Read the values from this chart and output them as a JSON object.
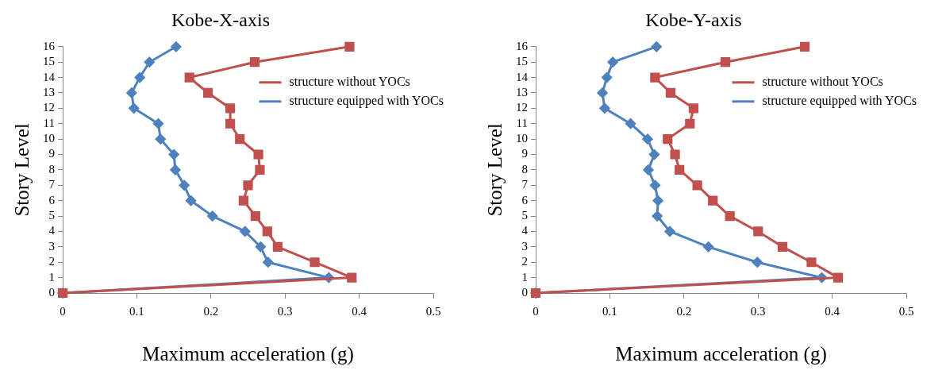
{
  "chart_data": [
    {
      "type": "line",
      "title": "Kobe-X-axis",
      "xlabel": "Maximum acceleration (g)",
      "ylabel": "Story Level",
      "xlim": [
        0,
        0.5
      ],
      "xticks": [
        0,
        0.1,
        0.2,
        0.3,
        0.4,
        0.5
      ],
      "ylim": [
        0,
        16
      ],
      "yticks": [
        0,
        1,
        2,
        3,
        4,
        5,
        6,
        7,
        8,
        9,
        10,
        11,
        12,
        13,
        14,
        15,
        16
      ],
      "grid": false,
      "legend": "top right",
      "series": [
        {
          "name": "structure without YOCs",
          "color": "#c0504d",
          "marker": "square",
          "x": [
            0,
            0.39,
            0.34,
            0.29,
            0.276,
            0.26,
            0.244,
            0.25,
            0.266,
            0.264,
            0.239,
            0.226,
            0.226,
            0.196,
            0.171,
            0.259,
            0.387
          ],
          "values": [
            0,
            1,
            2,
            3,
            4,
            5,
            6,
            7,
            8,
            9,
            10,
            11,
            12,
            13,
            14,
            15,
            16
          ]
        },
        {
          "name": "structure equipped with YOCs",
          "color": "#4f81bd",
          "marker": "diamond",
          "x": [
            0,
            0.359,
            0.277,
            0.267,
            0.246,
            0.202,
            0.173,
            0.164,
            0.152,
            0.15,
            0.132,
            0.129,
            0.096,
            0.093,
            0.104,
            0.117,
            0.153
          ],
          "values": [
            0,
            1,
            2,
            3,
            4,
            5,
            6,
            7,
            8,
            9,
            10,
            11,
            12,
            13,
            14,
            15,
            16
          ]
        }
      ]
    },
    {
      "type": "line",
      "title": "Kobe-Y-axis",
      "xlabel": "Maximum acceleration (g)",
      "ylabel": "Story Level",
      "xlim": [
        0,
        0.5
      ],
      "xticks": [
        0,
        0.1,
        0.2,
        0.3,
        0.4,
        0.5
      ],
      "ylim": [
        0,
        16
      ],
      "yticks": [
        0,
        1,
        2,
        3,
        4,
        5,
        6,
        7,
        8,
        9,
        10,
        11,
        12,
        13,
        14,
        15,
        16
      ],
      "grid": false,
      "legend": "top right",
      "series": [
        {
          "name": "structure without YOCs",
          "color": "#c0504d",
          "marker": "square",
          "x": [
            0,
            0.408,
            0.372,
            0.333,
            0.3,
            0.262,
            0.239,
            0.218,
            0.194,
            0.188,
            0.178,
            0.208,
            0.213,
            0.182,
            0.161,
            0.256,
            0.363
          ],
          "values": [
            0,
            1,
            2,
            3,
            4,
            5,
            6,
            7,
            8,
            9,
            10,
            11,
            12,
            13,
            14,
            15,
            16
          ]
        },
        {
          "name": "structure equipped with YOCs",
          "color": "#4f81bd",
          "marker": "diamond",
          "x": [
            0,
            0.386,
            0.299,
            0.233,
            0.181,
            0.164,
            0.165,
            0.161,
            0.152,
            0.16,
            0.151,
            0.128,
            0.093,
            0.09,
            0.096,
            0.104,
            0.163
          ],
          "values": [
            0,
            1,
            2,
            3,
            4,
            5,
            6,
            7,
            8,
            9,
            10,
            11,
            12,
            13,
            14,
            15,
            16
          ]
        }
      ]
    }
  ]
}
